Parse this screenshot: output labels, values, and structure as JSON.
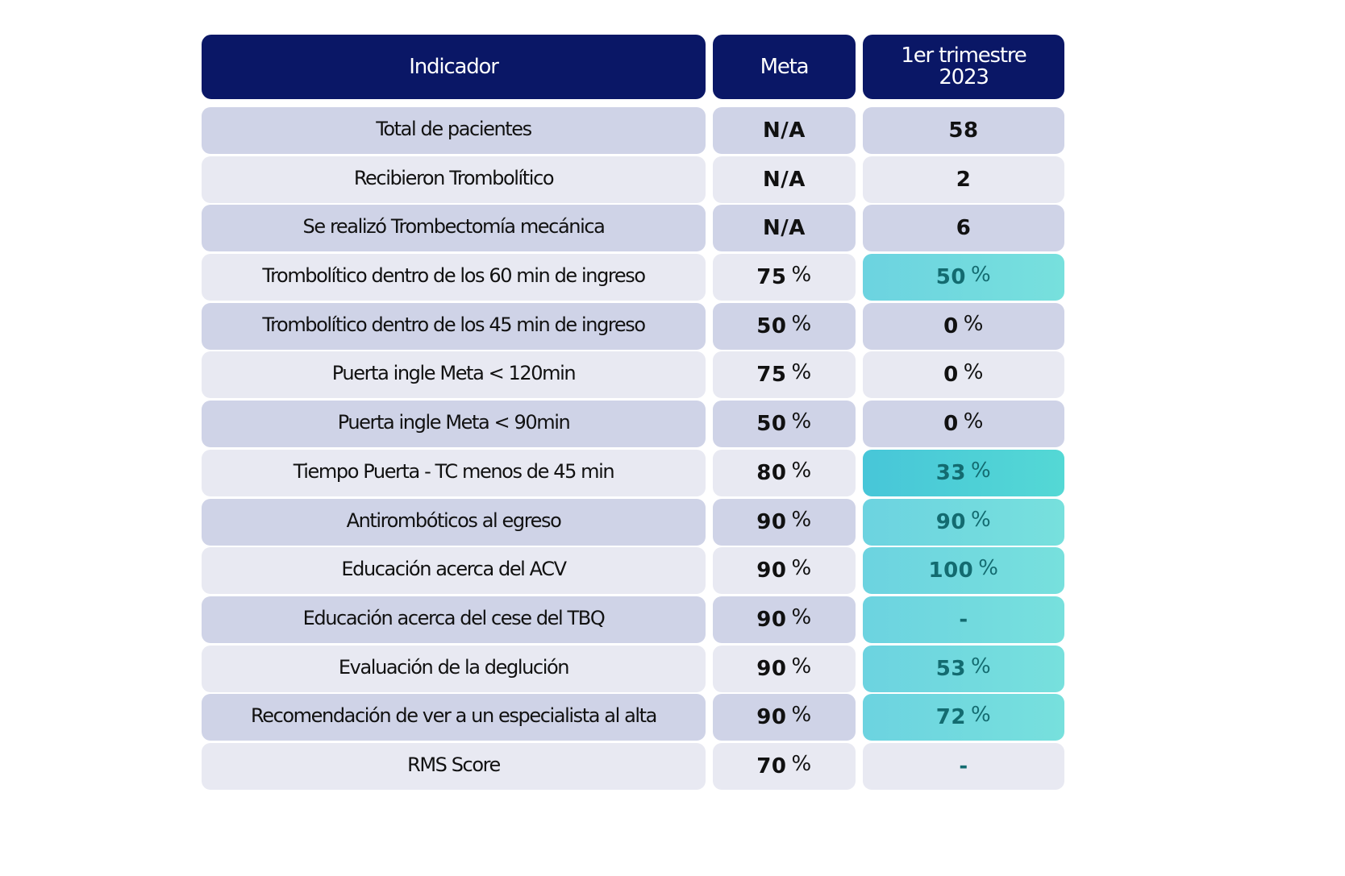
{
  "table": {
    "headers": {
      "indicator": "Indicador",
      "meta": "Meta",
      "period_line1": "1er trimestre",
      "period_line2": "2023"
    },
    "colors": {
      "header_bg": "#0a1766",
      "row_dark": "#cfd3e7",
      "row_light": "#e8e9f2",
      "highlight": "#6cd3e0",
      "highlight_strong": "#47c6d8",
      "highlight_text": "#136b70"
    },
    "rows": [
      {
        "indicator": "Total de pacientes",
        "meta": "N/A",
        "meta_pct": "",
        "value": "58",
        "value_pct": "",
        "highlight": "none"
      },
      {
        "indicator": "Recibieron Trombolítico",
        "meta": "N/A",
        "meta_pct": "",
        "value": "2",
        "value_pct": "",
        "highlight": "none"
      },
      {
        "indicator": "Se realizó Trombectomía mecánica",
        "meta": "N/A",
        "meta_pct": "",
        "value": "6",
        "value_pct": "",
        "highlight": "none"
      },
      {
        "indicator": "Trombolítico dentro de los 60 min de ingreso",
        "meta": "75",
        "meta_pct": "%",
        "value": "50",
        "value_pct": "%",
        "highlight": "normal"
      },
      {
        "indicator": "Trombolítico dentro de los 45 min de ingreso",
        "meta": "50",
        "meta_pct": "%",
        "value": "0",
        "value_pct": "%",
        "highlight": "none"
      },
      {
        "indicator": "Puerta ingle Meta < 120min",
        "meta": "75",
        "meta_pct": "%",
        "value": "0",
        "value_pct": "%",
        "highlight": "none"
      },
      {
        "indicator": "Puerta ingle Meta < 90min",
        "meta": "50",
        "meta_pct": "%",
        "value": "0",
        "value_pct": "%",
        "highlight": "none"
      },
      {
        "indicator": "Tiempo Puerta - TC menos de 45 min",
        "meta": "80",
        "meta_pct": "%",
        "value": "33",
        "value_pct": "%",
        "highlight": "strong"
      },
      {
        "indicator": "Antirombóticos al egreso",
        "meta": "90",
        "meta_pct": "%",
        "value": "90",
        "value_pct": "%",
        "highlight": "normal"
      },
      {
        "indicator": "Educación acerca del ACV",
        "meta": "90",
        "meta_pct": "%",
        "value": "100",
        "value_pct": "%",
        "highlight": "normal"
      },
      {
        "indicator": "Educación acerca del cese del TBQ",
        "meta": "90",
        "meta_pct": "%",
        "value": "-",
        "value_pct": "",
        "highlight": "normal"
      },
      {
        "indicator": "Evaluación de la deglución",
        "meta": "90",
        "meta_pct": "%",
        "value": "53",
        "value_pct": "%",
        "highlight": "normal"
      },
      {
        "indicator": "Recomendación de ver a un especialista al alta",
        "meta": "90",
        "meta_pct": "%",
        "value": "72",
        "value_pct": "%",
        "highlight": "normal"
      },
      {
        "indicator": "RMS Score",
        "meta": "70",
        "meta_pct": "%",
        "value": "-",
        "value_pct": "",
        "highlight": "dash"
      }
    ]
  }
}
